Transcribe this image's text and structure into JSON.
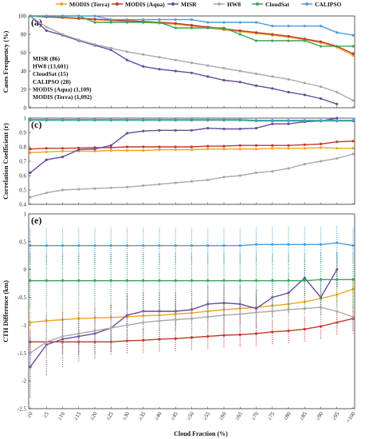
{
  "chart_data": {
    "type": "line",
    "legend": {
      "placement": "top",
      "entries": [
        "MODIS (Terra)",
        "MODIS (Aqua)",
        "MISR",
        "HW8",
        "CloudSat",
        "CALIPSO"
      ]
    },
    "colors": {
      "MODIS (Terra)": "#f2a31f",
      "MODIS (Aqua)": "#c0392b",
      "MISR": "#6a4a9e",
      "HW8": "#a9a9a9",
      "CloudSat": "#3aa35c",
      "CALIPSO": "#4a9fd8"
    },
    "xlabel": "Cloud Fraction (%)",
    "xticks": [
      "≥0",
      "≥5",
      "≥10",
      "≥15",
      "≥20",
      "≥25",
      "≥30",
      "≥35",
      "≥40",
      "≥45",
      "≥50",
      "≥55",
      "≥60",
      "≥65",
      "≥70",
      "≥75",
      "≥80",
      "≥85",
      "≥90",
      "≥95",
      "=100"
    ],
    "panels": [
      {
        "label": "(a)",
        "ylabel": "Cases Frequency (%)",
        "ylim": [
          0,
          100
        ],
        "yticks": [
          "0",
          "20",
          "40",
          "60",
          "80",
          "100"
        ],
        "yvals": [
          0,
          20,
          40,
          60,
          80,
          100
        ],
        "counts": [
          "MISR (86)",
          "HW8 (13,601)",
          "CloudSat (15)",
          "CALIPSO (28)",
          "MODIS (Aqua) (1,109)",
          "MODIS (Terra) (1,092)"
        ],
        "series": [
          {
            "name": "MODIS (Terra)",
            "values": [
              100,
              99,
              98,
              97,
              96,
              95,
              94,
              93,
              92,
              91,
              89,
              87,
              85,
              83,
              81,
              79,
              77,
              74,
              71,
              66,
              57
            ]
          },
          {
            "name": "MODIS (Aqua)",
            "values": [
              100,
              99,
              98.5,
              97.5,
              96.5,
              95.5,
              95,
              94,
              93,
              92,
              90,
              88,
              86,
              84,
              82,
              80,
              78,
              75,
              72,
              67,
              59
            ]
          },
          {
            "name": "MISR",
            "values": [
              100,
              84,
              79,
              73,
              68,
              63,
              52,
              45,
              42,
              40,
              38,
              34,
              30,
              28,
              24,
              21,
              17,
              14,
              10,
              4,
              null
            ]
          },
          {
            "name": "HW8",
            "values": [
              100,
              88,
              80,
              74,
              69,
              65,
              61,
              58,
              55,
              52,
              49,
              46,
              43,
              40,
              37,
              34,
              31,
              27,
              23,
              17,
              8
            ]
          },
          {
            "name": "CloudSat",
            "values": [
              100,
              100,
              100,
              100,
              93,
              93,
              93,
              93,
              93,
              87,
              87,
              87,
              87,
              80,
              73,
              73,
              73,
              73,
              67,
              67,
              67
            ]
          },
          {
            "name": "CALIPSO",
            "values": [
              100,
              100,
              100,
              100,
              100,
              96,
              96,
              96,
              96,
              96,
              96,
              93,
              93,
              93,
              93,
              89,
              89,
              89,
              89,
              82,
              79
            ]
          }
        ]
      },
      {
        "label": "(c)",
        "ylabel": "Correlation Coefficient (r)",
        "ylim": [
          0.4,
          1.0
        ],
        "yticks": [
          "0.4",
          "0.5",
          "0.6",
          "0.7",
          "0.8",
          "0.9",
          "1"
        ],
        "yvals": [
          0.4,
          0.5,
          0.6,
          0.7,
          0.8,
          0.9,
          1.0
        ],
        "series": [
          {
            "name": "MODIS (Terra)",
            "values": [
              0.76,
              0.765,
              0.77,
              0.77,
              0.77,
              0.775,
              0.775,
              0.775,
              0.78,
              0.78,
              0.78,
              0.785,
              0.785,
              0.785,
              0.785,
              0.79,
              0.79,
              0.79,
              0.795,
              0.79,
              0.79
            ]
          },
          {
            "name": "MODIS (Aqua)",
            "values": [
              0.785,
              0.79,
              0.79,
              0.792,
              0.795,
              0.795,
              0.8,
              0.8,
              0.8,
              0.8,
              0.8,
              0.805,
              0.805,
              0.81,
              0.81,
              0.81,
              0.81,
              0.815,
              0.82,
              0.835,
              0.84
            ]
          },
          {
            "name": "MISR",
            "values": [
              0.62,
              0.71,
              0.73,
              0.78,
              0.785,
              0.81,
              0.895,
              0.91,
              0.915,
              0.915,
              0.915,
              0.93,
              0.925,
              0.925,
              0.93,
              0.96,
              0.96,
              0.975,
              0.98,
              1.0,
              null
            ]
          },
          {
            "name": "HW8",
            "values": [
              0.45,
              0.48,
              0.5,
              0.505,
              0.51,
              0.515,
              0.52,
              0.53,
              0.54,
              0.55,
              0.56,
              0.57,
              0.59,
              0.6,
              0.62,
              0.63,
              0.65,
              0.68,
              0.7,
              0.72,
              0.75
            ]
          },
          {
            "name": "CloudSat",
            "values": [
              0.985,
              0.985,
              0.985,
              0.985,
              0.985,
              0.985,
              0.985,
              0.985,
              0.985,
              0.985,
              0.985,
              0.985,
              0.985,
              0.985,
              0.98,
              0.98,
              0.98,
              0.98,
              0.98,
              0.98,
              0.98
            ]
          },
          {
            "name": "CALIPSO",
            "values": [
              0.99,
              0.99,
              0.99,
              0.99,
              0.99,
              0.99,
              0.99,
              0.99,
              0.99,
              0.99,
              0.99,
              0.99,
              0.99,
              0.99,
              0.985,
              0.985,
              0.985,
              0.985,
              0.985,
              0.985,
              0.985
            ]
          }
        ]
      },
      {
        "label": "(e)",
        "ylabel": "CTH Difference (km)",
        "ylim": [
          -2.5,
          1.0
        ],
        "yticks": [
          "-2.5",
          "-2",
          "-1.5",
          "-1",
          "-0.5",
          "0",
          "0.5",
          "1"
        ],
        "yvals": [
          -2.5,
          -2,
          -1.5,
          -1,
          -0.5,
          0,
          0.5,
          1
        ],
        "series": [
          {
            "name": "MODIS (Terra)",
            "values": [
              -0.95,
              -0.92,
              -0.9,
              -0.88,
              -0.87,
              -0.86,
              -0.85,
              -0.83,
              -0.82,
              -0.8,
              -0.78,
              -0.75,
              -0.72,
              -0.7,
              -0.68,
              -0.65,
              -0.62,
              -0.58,
              -0.52,
              -0.45,
              -0.35
            ],
            "err": [
              0.2,
              0.2,
              0.2,
              0.2,
              0.2,
              0.2,
              0.2,
              0.2,
              0.2,
              0.2,
              0.2,
              0.2,
              0.2,
              0.2,
              0.2,
              0.2,
              0.2,
              0.2,
              0.2,
              0.2,
              0.2
            ]
          },
          {
            "name": "MODIS (Aqua)",
            "values": [
              -1.3,
              -1.3,
              -1.3,
              -1.3,
              -1.3,
              -1.3,
              -1.28,
              -1.27,
              -1.25,
              -1.24,
              -1.22,
              -1.2,
              -1.18,
              -1.17,
              -1.15,
              -1.12,
              -1.1,
              -1.07,
              -1.02,
              -0.95,
              -0.88
            ],
            "err": [
              0.22,
              0.22,
              0.22,
              0.22,
              0.22,
              0.22,
              0.22,
              0.22,
              0.22,
              0.22,
              0.22,
              0.22,
              0.22,
              0.22,
              0.22,
              0.22,
              0.22,
              0.22,
              0.22,
              0.22,
              0.22
            ]
          },
          {
            "name": "MISR",
            "values": [
              -1.75,
              -1.35,
              -1.25,
              -1.2,
              -1.15,
              -1.05,
              -0.82,
              -0.75,
              -0.75,
              -0.75,
              -0.72,
              -0.62,
              -0.6,
              -0.62,
              -0.7,
              -0.5,
              -0.42,
              -0.15,
              -0.5,
              0.0,
              null
            ],
            "err": [
              0.55,
              0.55,
              0.5,
              0.45,
              0.45,
              0.42,
              0.38,
              0.35,
              0.35,
              0.35,
              0.35,
              0.35,
              0.35,
              0.35,
              0.35,
              0.35,
              0.35,
              0.32,
              0.32,
              0.32,
              0
            ]
          },
          {
            "name": "HW8",
            "values": [
              -1.5,
              -1.3,
              -1.2,
              -1.15,
              -1.1,
              -1.05,
              -1.0,
              -0.95,
              -0.92,
              -0.9,
              -0.88,
              -0.85,
              -0.82,
              -0.8,
              -0.77,
              -0.75,
              -0.72,
              -0.7,
              -0.68,
              -0.75,
              -0.85
            ],
            "err": [
              0.3,
              0.3,
              0.3,
              0.3,
              0.3,
              0.3,
              0.3,
              0.3,
              0.3,
              0.3,
              0.3,
              0.3,
              0.3,
              0.3,
              0.3,
              0.3,
              0.3,
              0.3,
              0.3,
              0.3,
              0.3
            ]
          },
          {
            "name": "CloudSat",
            "values": [
              -0.2,
              -0.2,
              -0.2,
              -0.2,
              -0.2,
              -0.2,
              -0.2,
              -0.2,
              -0.2,
              -0.2,
              -0.2,
              -0.2,
              -0.2,
              -0.2,
              -0.2,
              -0.2,
              -0.2,
              -0.2,
              -0.18,
              -0.18,
              -0.18
            ],
            "err": [
              0.5,
              0.5,
              0.5,
              0.5,
              0.5,
              0.5,
              0.5,
              0.5,
              0.5,
              0.5,
              0.5,
              0.5,
              0.5,
              0.5,
              0.5,
              0.5,
              0.5,
              0.5,
              0.5,
              0.5,
              0.5
            ]
          },
          {
            "name": "CALIPSO",
            "values": [
              0.43,
              0.43,
              0.43,
              0.43,
              0.43,
              0.43,
              0.43,
              0.43,
              0.43,
              0.43,
              0.43,
              0.43,
              0.43,
              0.43,
              0.45,
              0.45,
              0.45,
              0.45,
              0.45,
              0.48,
              0.43
            ],
            "err": [
              0.32,
              0.32,
              0.32,
              0.32,
              0.32,
              0.32,
              0.32,
              0.32,
              0.32,
              0.32,
              0.32,
              0.32,
              0.32,
              0.32,
              0.32,
              0.32,
              0.32,
              0.32,
              0.32,
              0.32,
              0.32
            ]
          }
        ]
      }
    ]
  }
}
